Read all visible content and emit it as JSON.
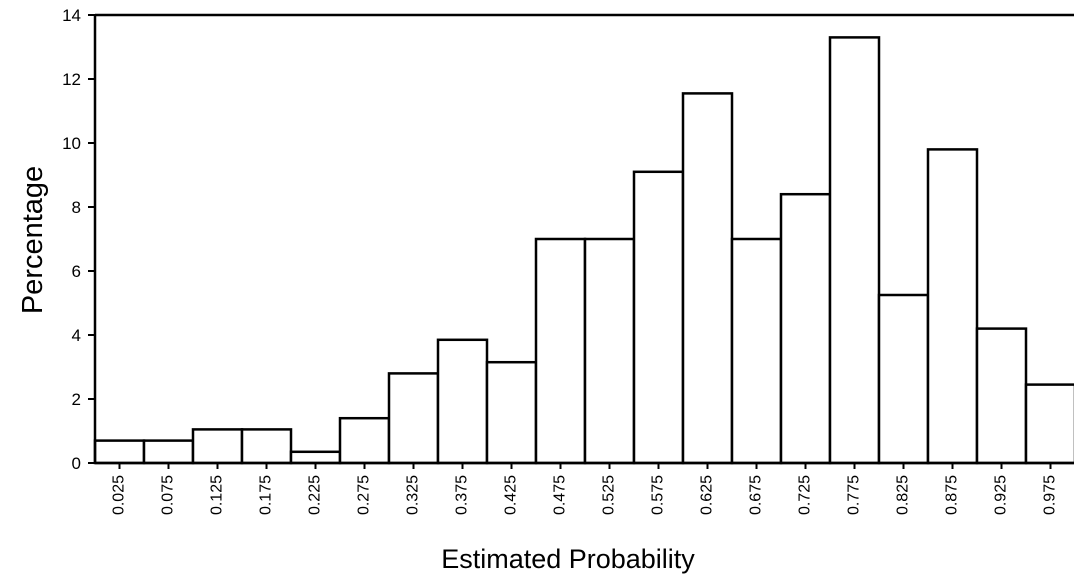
{
  "chart_data": {
    "type": "bar",
    "title": "",
    "xlabel": "Estimated Probability",
    "ylabel": "Percentage",
    "categories": [
      "0.025",
      "0.075",
      "0.125",
      "0.175",
      "0.225",
      "0.275",
      "0.325",
      "0.375",
      "0.425",
      "0.475",
      "0.525",
      "0.575",
      "0.625",
      "0.675",
      "0.725",
      "0.775",
      "0.825",
      "0.875",
      "0.925",
      "0.975"
    ],
    "values": [
      0.7,
      0.7,
      1.05,
      1.05,
      0.35,
      1.4,
      2.8,
      3.85,
      3.15,
      7.0,
      7.0,
      9.1,
      11.55,
      7.0,
      8.4,
      13.3,
      5.25,
      9.8,
      4.2,
      2.45
    ],
    "ylim": [
      0,
      14
    ],
    "yticks": [
      "0",
      "2",
      "4",
      "6",
      "8",
      "10",
      "12",
      "14"
    ],
    "grid": false,
    "colors": {
      "bar_fill": "#ffffff",
      "bar_stroke": "#000000",
      "axis": "#000000"
    }
  }
}
